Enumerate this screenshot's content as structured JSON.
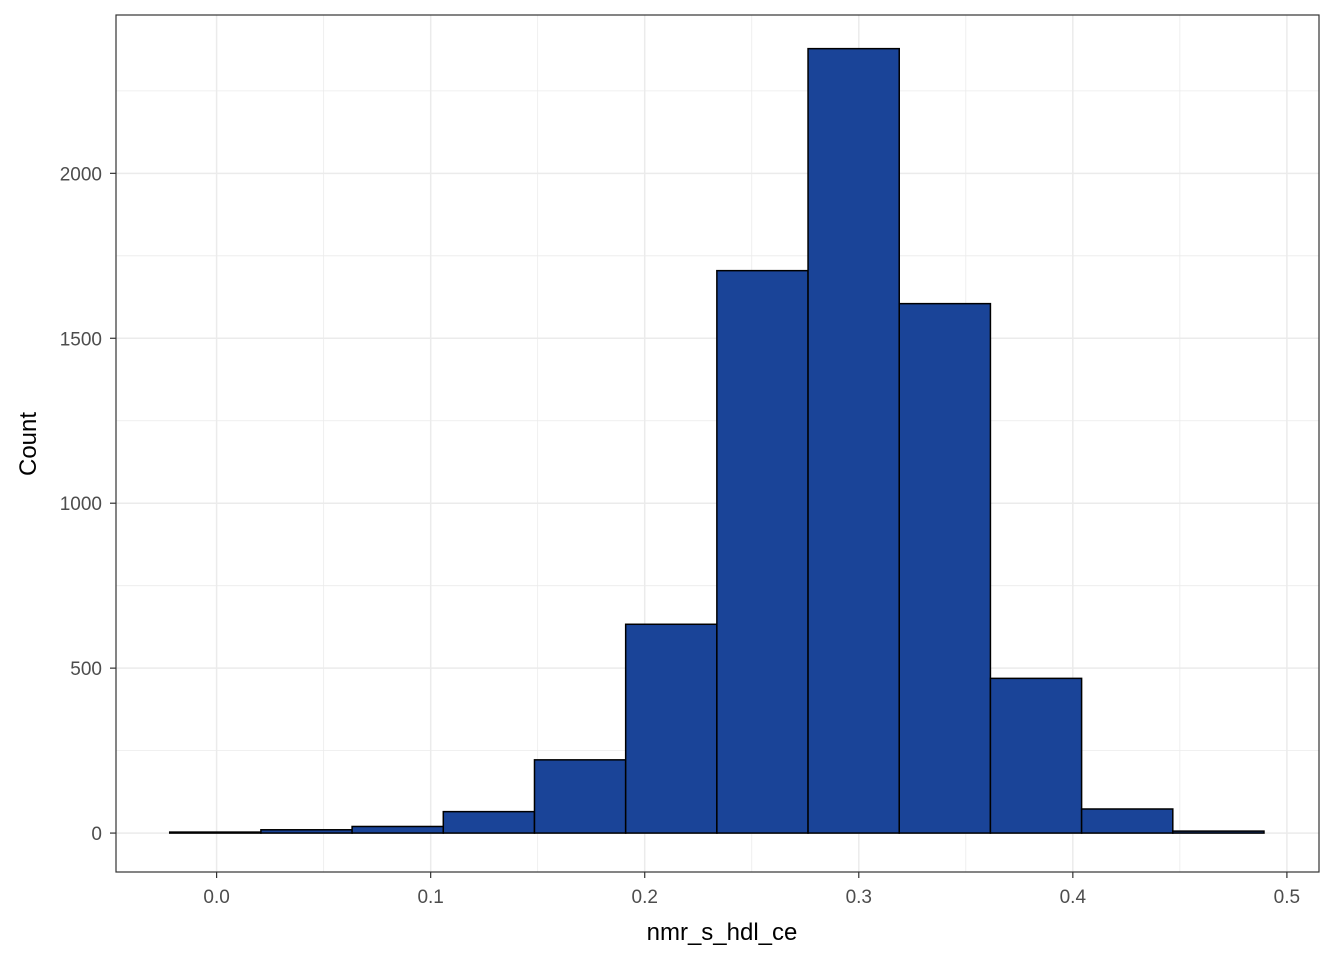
{
  "chart_data": {
    "type": "bar",
    "subtype": "histogram",
    "xlabel": "nmr_s_hdl_ce",
    "ylabel": "Count",
    "xlim": [
      -0.047,
      0.515
    ],
    "ylim": [
      -118,
      2480
    ],
    "x_ticks": [
      0.0,
      0.1,
      0.2,
      0.3,
      0.4,
      0.5
    ],
    "x_tick_labels": [
      "0.0",
      "0.1",
      "0.2",
      "0.3",
      "0.4",
      "0.5"
    ],
    "y_ticks": [
      0,
      500,
      1000,
      1500,
      2000
    ],
    "y_tick_labels": [
      "0",
      "500",
      "1000",
      "1500",
      "2000"
    ],
    "bins": [
      {
        "x0": -0.0219,
        "x1": 0.0207,
        "count": 3
      },
      {
        "x0": 0.0207,
        "x1": 0.0633,
        "count": 10
      },
      {
        "x0": 0.0633,
        "x1": 0.1059,
        "count": 20
      },
      {
        "x0": 0.1059,
        "x1": 0.1485,
        "count": 65
      },
      {
        "x0": 0.1485,
        "x1": 0.1911,
        "count": 222
      },
      {
        "x0": 0.1911,
        "x1": 0.2337,
        "count": 633
      },
      {
        "x0": 0.2337,
        "x1": 0.2763,
        "count": 1705
      },
      {
        "x0": 0.2763,
        "x1": 0.3189,
        "count": 2378
      },
      {
        "x0": 0.3189,
        "x1": 0.3615,
        "count": 1605
      },
      {
        "x0": 0.3615,
        "x1": 0.4041,
        "count": 469
      },
      {
        "x0": 0.4041,
        "x1": 0.4467,
        "count": 73
      },
      {
        "x0": 0.4467,
        "x1": 0.4893,
        "count": 6
      }
    ],
    "bar_fill": "#1a4498",
    "bar_stroke": "#000000",
    "panel_background": "#ffffff",
    "panel_border": "#333333",
    "grid": true,
    "grid_color": "#ebebeb",
    "legend": "none"
  }
}
